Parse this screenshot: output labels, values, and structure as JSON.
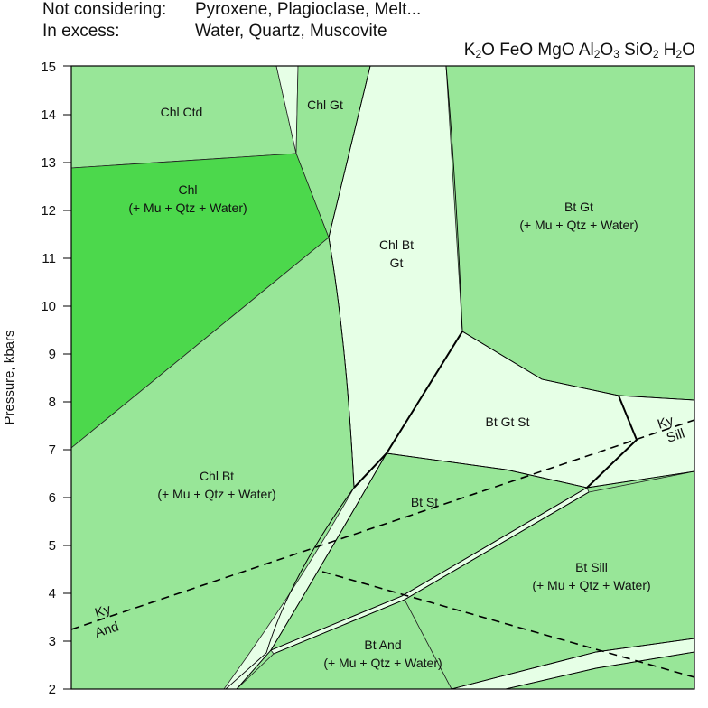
{
  "header": {
    "not_considering_label": "Not considering:",
    "not_considering_value": "Pyroxene, Plagioclase, Melt...",
    "in_excess_label": "In excess:",
    "in_excess_value": "Water, Quartz, Muscovite"
  },
  "system_components": [
    "K",
    "2",
    "O FeO MgO Al",
    "2",
    "O",
    "3",
    " SiO",
    "2",
    " H",
    "2",
    "O"
  ],
  "axis": {
    "ylabel": "Pressure, kbars",
    "yticks": [
      "2",
      "3",
      "4",
      "5",
      "6",
      "7",
      "8",
      "9",
      "10",
      "11",
      "12",
      "13",
      "14",
      "15"
    ]
  },
  "fields": {
    "chl_ctd": "Chl Ctd",
    "chl_gt": "Chl Gt",
    "chl_line1": "Chl",
    "chl_line2": "(+ Mu + Qtz + Water)",
    "chl_bt_gt_line1": "Chl Bt",
    "chl_bt_gt_line2": "Gt",
    "bt_gt_line1": "Bt Gt",
    "bt_gt_line2": "(+ Mu + Qtz + Water)",
    "bt_gt_st": "Bt Gt St",
    "chl_bt_line1": "Chl Bt",
    "chl_bt_line2": "(+ Mu + Qtz + Water)",
    "bt_st": "Bt St",
    "bt_sill_line1": "Bt Sill",
    "bt_sill_line2": "(+ Mu + Qtz + Water)",
    "bt_and_line1": "Bt And",
    "bt_and_line2": "(+ Mu + Qtz + Water)"
  },
  "reaction_labels": {
    "ky_left": "Ky",
    "and_left": "And",
    "ky_right": "Ky",
    "sill_right": "Sill"
  },
  "colors": {
    "light": "#98e698",
    "pale": "#e6ffe6",
    "bright": "#4cd84c",
    "line": "#000000"
  }
}
